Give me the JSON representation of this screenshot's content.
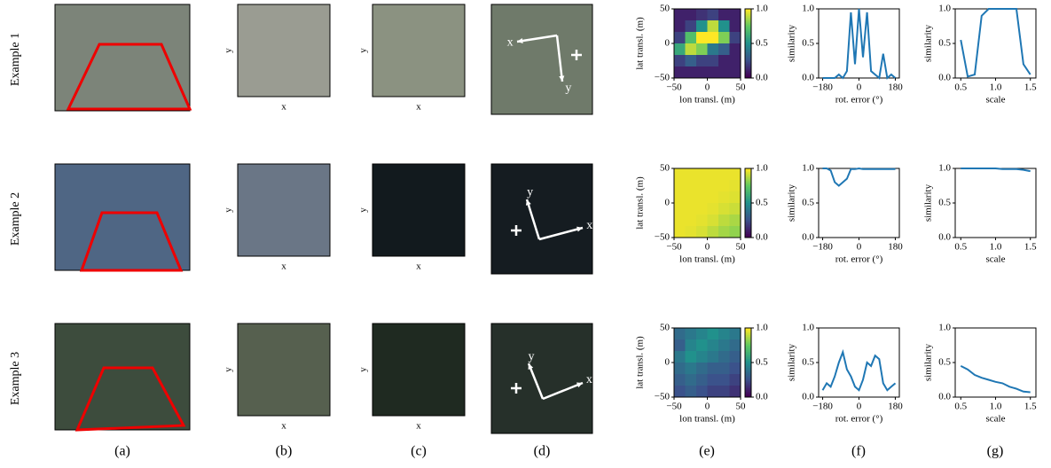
{
  "row_labels": [
    "Example 1",
    "Example 2",
    "Example 3"
  ],
  "column_labels": [
    "(a)",
    "(b)",
    "(c)",
    "(d)",
    "(e)",
    "(f)",
    "(g)"
  ],
  "image_axis_labels": {
    "x": "x",
    "y": "y"
  },
  "line_color": "#1f77b4",
  "heatmap": {
    "xlabel": "lon transl. (m)",
    "ylabel": "lat transl. (m)",
    "xlim": [
      -50,
      50
    ],
    "ylim": [
      -50,
      50
    ],
    "xticks": [
      {
        "value": -50,
        "label": "−50"
      },
      0,
      50
    ],
    "yticks": [
      {
        "value": -50,
        "label": "−50"
      },
      0,
      50
    ],
    "colormap": "viridis",
    "colorbar_lim": [
      0,
      1
    ],
    "colorbar_ticks": [
      {
        "value": 0,
        "label": "0.0"
      },
      {
        "value": 0.5,
        "label": "0.5"
      },
      {
        "value": 1,
        "label": "1.0"
      }
    ]
  },
  "rotation_plot": {
    "xlabel": "rot. error (°)",
    "ylabel": "similarity",
    "xlim": [
      -200,
      200
    ],
    "xticks": [
      {
        "value": -180,
        "label": "−180"
      },
      0,
      180
    ],
    "ylim": [
      0,
      1
    ],
    "yticks": [
      {
        "value": 0,
        "label": "0.0"
      },
      0.5,
      {
        "value": 1,
        "label": "1.0"
      }
    ]
  },
  "scale_plot": {
    "xlabel": "scale",
    "ylabel": "similarity",
    "xlim": [
      0.42,
      1.58
    ],
    "xticks": [
      0.5,
      {
        "value": 1,
        "label": "1.0"
      },
      1.5
    ],
    "ylim": [
      0,
      1
    ],
    "yticks": [
      {
        "value": 0,
        "label": "0.0"
      },
      0.5,
      {
        "value": 1,
        "label": "1.0"
      }
    ]
  },
  "examples": [
    {
      "heatmap": [
        [
          0.1,
          0.1,
          0.15,
          0.2,
          0.1,
          0.1
        ],
        [
          0.1,
          0.2,
          0.5,
          0.9,
          0.5,
          0.1
        ],
        [
          0.2,
          0.7,
          1.0,
          1.0,
          0.8,
          0.2
        ],
        [
          0.6,
          0.9,
          0.8,
          0.4,
          0.3,
          0.1
        ],
        [
          0.2,
          0.3,
          0.2,
          0.2,
          0.1,
          0.1
        ],
        [
          0.1,
          0.1,
          0.1,
          0.1,
          0.1,
          0.1
        ]
      ],
      "rotation": {
        "x": [
          -180,
          -160,
          -140,
          -120,
          -100,
          -80,
          -60,
          -40,
          -20,
          0,
          20,
          40,
          60,
          80,
          100,
          120,
          140,
          160,
          180
        ],
        "values": [
          0,
          0,
          0,
          0,
          0.05,
          0,
          0.1,
          0.95,
          0.2,
          1.0,
          0.3,
          0.95,
          0.1,
          0.05,
          0,
          0.35,
          0,
          0.05,
          0
        ]
      },
      "scale": {
        "x": [
          0.5,
          0.6,
          0.7,
          0.8,
          0.9,
          1.0,
          1.1,
          1.2,
          1.3,
          1.4,
          1.5
        ],
        "values": [
          0.55,
          0.02,
          0.05,
          0.9,
          1,
          1,
          1,
          1,
          1,
          0.2,
          0.05
        ]
      }
    },
    {
      "heatmap": [
        [
          0.97,
          0.97,
          0.97,
          0.97,
          0.97,
          0.97
        ],
        [
          0.97,
          0.97,
          0.97,
          0.97,
          0.97,
          0.96
        ],
        [
          0.97,
          0.97,
          0.97,
          0.97,
          0.96,
          0.95
        ],
        [
          0.97,
          0.97,
          0.97,
          0.96,
          0.94,
          0.92
        ],
        [
          0.97,
          0.97,
          0.96,
          0.94,
          0.9,
          0.87
        ],
        [
          0.97,
          0.96,
          0.94,
          0.9,
          0.86,
          0.83
        ]
      ],
      "rotation": {
        "x": [
          -180,
          -160,
          -140,
          -120,
          -100,
          -80,
          -60,
          -40,
          -20,
          0,
          20,
          40,
          60,
          80,
          100,
          120,
          140,
          160,
          180
        ],
        "values": [
          1,
          1,
          0.97,
          0.8,
          0.75,
          0.8,
          0.85,
          0.99,
          0.99,
          1,
          0.99,
          0.99,
          0.99,
          0.99,
          0.99,
          0.99,
          0.99,
          0.99,
          0.99
        ]
      },
      "scale": {
        "x": [
          0.5,
          0.6,
          0.7,
          0.8,
          0.9,
          1.0,
          1.1,
          1.2,
          1.3,
          1.4,
          1.5
        ],
        "values": [
          1,
          1,
          1,
          1,
          1,
          1,
          0.99,
          0.99,
          0.99,
          0.98,
          0.96
        ]
      }
    },
    {
      "heatmap": [
        [
          0.35,
          0.4,
          0.45,
          0.5,
          0.45,
          0.4
        ],
        [
          0.3,
          0.45,
          0.5,
          0.45,
          0.4,
          0.35
        ],
        [
          0.4,
          0.5,
          0.45,
          0.4,
          0.35,
          0.3
        ],
        [
          0.35,
          0.4,
          0.35,
          0.3,
          0.3,
          0.25
        ],
        [
          0.3,
          0.35,
          0.3,
          0.25,
          0.25,
          0.2
        ],
        [
          0.25,
          0.3,
          0.25,
          0.2,
          0.2,
          0.15
        ]
      ],
      "rotation": {
        "x": [
          -180,
          -160,
          -140,
          -120,
          -100,
          -80,
          -60,
          -40,
          -20,
          0,
          20,
          40,
          60,
          80,
          100,
          120,
          140,
          160,
          180
        ],
        "values": [
          0.1,
          0.2,
          0.15,
          0.3,
          0.5,
          0.65,
          0.4,
          0.3,
          0.15,
          0.1,
          0.25,
          0.5,
          0.45,
          0.6,
          0.55,
          0.2,
          0.1,
          0.15,
          0.2
        ]
      },
      "scale": {
        "x": [
          0.5,
          0.6,
          0.7,
          0.8,
          0.9,
          1.0,
          1.1,
          1.2,
          1.3,
          1.4,
          1.5
        ],
        "values": [
          0.45,
          0.4,
          0.32,
          0.28,
          0.25,
          0.22,
          0.2,
          0.15,
          0.12,
          0.08,
          0.07
        ]
      }
    }
  ]
}
